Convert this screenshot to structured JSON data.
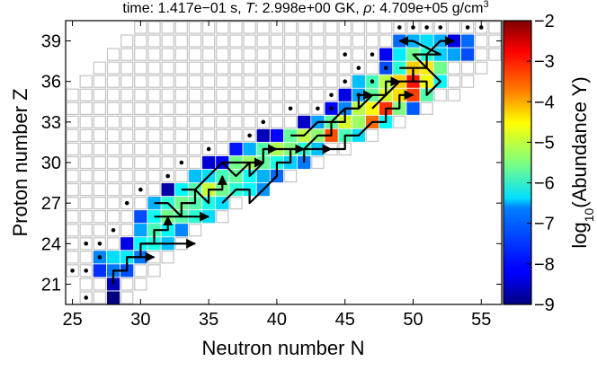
{
  "chart_data": {
    "type": "heatmap",
    "title": "time: 1.417e−01 s, T: 2.998e+00 GK, ρ: 4.709e+05 g/cm³",
    "title_parts": {
      "time_label": "time:",
      "time_value": "1.417e−01 s,",
      "temp_symbol": "T",
      "temp_value": ": 2.998e+00 GK,",
      "rho_symbol": "ρ",
      "rho_value": ": 4.709e+05 g/cm",
      "rho_unit_sup": "3"
    },
    "xlabel": "Neutron number N",
    "ylabel": "Proton number Z",
    "xlim": [
      24.5,
      56.5
    ],
    "ylim": [
      19.5,
      40.5
    ],
    "xticks": [
      25,
      30,
      35,
      40,
      45,
      50,
      55
    ],
    "yticks": [
      21,
      24,
      27,
      30,
      33,
      36,
      39
    ],
    "colorbar": {
      "label_prefix": "log",
      "label_sub": "10",
      "label_suffix": "(Abundance Y)",
      "range": [
        -9,
        -2
      ],
      "ticks": [
        "−9",
        "−8",
        "−7",
        "−6",
        "−5",
        "−4",
        "−3",
        "−2"
      ],
      "colormap": "jet"
    },
    "grid_rows": [
      {
        "z": 20,
        "n_min": 26,
        "n_max": 29
      },
      {
        "z": 21,
        "n_min": 26,
        "n_max": 30
      },
      {
        "z": 22,
        "n_min": 25,
        "n_max": 31
      },
      {
        "z": 23,
        "n_min": 25,
        "n_max": 32
      },
      {
        "z": 24,
        "n_min": 25,
        "n_max": 33
      },
      {
        "z": 25,
        "n_min": 25,
        "n_max": 34
      },
      {
        "z": 26,
        "n_min": 25,
        "n_max": 36
      },
      {
        "z": 27,
        "n_min": 25,
        "n_max": 37
      },
      {
        "z": 28,
        "n_min": 25,
        "n_max": 39
      },
      {
        "z": 29,
        "n_min": 25,
        "n_max": 41
      },
      {
        "z": 30,
        "n_min": 25,
        "n_max": 43
      },
      {
        "z": 31,
        "n_min": 25,
        "n_max": 45
      },
      {
        "z": 32,
        "n_min": 25,
        "n_max": 47
      },
      {
        "z": 33,
        "n_min": 25,
        "n_max": 49
      },
      {
        "z": 34,
        "n_min": 25,
        "n_max": 51
      },
      {
        "z": 35,
        "n_min": 25,
        "n_max": 53
      },
      {
        "z": 36,
        "n_min": 26,
        "n_max": 54
      },
      {
        "z": 37,
        "n_min": 27,
        "n_max": 55
      },
      {
        "z": 38,
        "n_min": 28,
        "n_max": 56
      },
      {
        "z": 39,
        "n_min": 29,
        "n_max": 56
      },
      {
        "z": 40,
        "n_min": 30,
        "n_max": 56
      }
    ],
    "abundant_cells": [
      {
        "z": 20,
        "n": 28,
        "log_y": -9.0
      },
      {
        "z": 21,
        "n": 28,
        "log_y": -8.6
      },
      {
        "z": 22,
        "n": 27,
        "log_y": -7.8
      },
      {
        "z": 22,
        "n": 28,
        "log_y": -7.3
      },
      {
        "z": 22,
        "n": 29,
        "log_y": -7.6
      },
      {
        "z": 23,
        "n": 27,
        "log_y": -7.2
      },
      {
        "z": 23,
        "n": 28,
        "log_y": -6.6
      },
      {
        "z": 23,
        "n": 29,
        "log_y": -6.5
      },
      {
        "z": 23,
        "n": 30,
        "log_y": -7.3
      },
      {
        "z": 24,
        "n": 29,
        "log_y": -8.3
      },
      {
        "z": 24,
        "n": 30,
        "log_y": -6.4
      },
      {
        "z": 24,
        "n": 31,
        "log_y": -6.2
      },
      {
        "z": 24,
        "n": 32,
        "log_y": -6.8
      },
      {
        "z": 25,
        "n": 30,
        "log_y": -7.0
      },
      {
        "z": 25,
        "n": 31,
        "log_y": -5.9
      },
      {
        "z": 25,
        "n": 32,
        "log_y": -6.4
      },
      {
        "z": 25,
        "n": 33,
        "log_y": -7.2
      },
      {
        "z": 26,
        "n": 30,
        "log_y": -7.6
      },
      {
        "z": 26,
        "n": 31,
        "log_y": -6.3
      },
      {
        "z": 26,
        "n": 32,
        "log_y": -5.6
      },
      {
        "z": 26,
        "n": 33,
        "log_y": -5.8
      },
      {
        "z": 26,
        "n": 34,
        "log_y": -6.1
      },
      {
        "z": 26,
        "n": 35,
        "log_y": -6.6
      },
      {
        "z": 27,
        "n": 31,
        "log_y": -6.9
      },
      {
        "z": 27,
        "n": 32,
        "log_y": -6.1
      },
      {
        "z": 27,
        "n": 33,
        "log_y": -5.6
      },
      {
        "z": 27,
        "n": 34,
        "log_y": -5.8
      },
      {
        "z": 27,
        "n": 35,
        "log_y": -6.2
      },
      {
        "z": 27,
        "n": 36,
        "log_y": -6.6
      },
      {
        "z": 28,
        "n": 32,
        "log_y": -8.7
      },
      {
        "z": 28,
        "n": 33,
        "log_y": -6.4
      },
      {
        "z": 28,
        "n": 34,
        "log_y": -5.8
      },
      {
        "z": 28,
        "n": 35,
        "log_y": -5.0
      },
      {
        "z": 28,
        "n": 36,
        "log_y": -5.6
      },
      {
        "z": 28,
        "n": 37,
        "log_y": -6.1
      },
      {
        "z": 28,
        "n": 38,
        "log_y": -6.4
      },
      {
        "z": 28,
        "n": 39,
        "log_y": -7.1
      },
      {
        "z": 29,
        "n": 34,
        "log_y": -6.8
      },
      {
        "z": 29,
        "n": 35,
        "log_y": -6.6
      },
      {
        "z": 29,
        "n": 36,
        "log_y": -5.9
      },
      {
        "z": 29,
        "n": 37,
        "log_y": -5.7
      },
      {
        "z": 29,
        "n": 38,
        "log_y": -6.3
      },
      {
        "z": 29,
        "n": 39,
        "log_y": -6.9
      },
      {
        "z": 29,
        "n": 40,
        "log_y": -7.4
      },
      {
        "z": 30,
        "n": 35,
        "log_y": -8.4
      },
      {
        "z": 30,
        "n": 36,
        "log_y": -8.2
      },
      {
        "z": 30,
        "n": 37,
        "log_y": -5.6
      },
      {
        "z": 30,
        "n": 38,
        "log_y": -5.3
      },
      {
        "z": 30,
        "n": 39,
        "log_y": -5.7
      },
      {
        "z": 30,
        "n": 40,
        "log_y": -6.2
      },
      {
        "z": 30,
        "n": 41,
        "log_y": -6.7
      },
      {
        "z": 30,
        "n": 42,
        "log_y": -7.3
      },
      {
        "z": 31,
        "n": 37,
        "log_y": -8.0
      },
      {
        "z": 31,
        "n": 38,
        "log_y": -6.9
      },
      {
        "z": 31,
        "n": 39,
        "log_y": -5.8
      },
      {
        "z": 31,
        "n": 40,
        "log_y": -5.2
      },
      {
        "z": 31,
        "n": 41,
        "log_y": -5.5
      },
      {
        "z": 31,
        "n": 42,
        "log_y": -6.1
      },
      {
        "z": 31,
        "n": 43,
        "log_y": -6.8
      },
      {
        "z": 32,
        "n": 39,
        "log_y": -8.6
      },
      {
        "z": 32,
        "n": 40,
        "log_y": -8.1
      },
      {
        "z": 32,
        "n": 41,
        "log_y": -5.7
      },
      {
        "z": 32,
        "n": 42,
        "log_y": -5.1
      },
      {
        "z": 32,
        "n": 43,
        "log_y": -5.4
      },
      {
        "z": 32,
        "n": 44,
        "log_y": -3.4
      },
      {
        "z": 32,
        "n": 45,
        "log_y": -5.9
      },
      {
        "z": 32,
        "n": 46,
        "log_y": -6.6
      },
      {
        "z": 33,
        "n": 42,
        "log_y": -8.5
      },
      {
        "z": 33,
        "n": 43,
        "log_y": -7.0
      },
      {
        "z": 33,
        "n": 44,
        "log_y": -5.7
      },
      {
        "z": 33,
        "n": 45,
        "log_y": -4.9
      },
      {
        "z": 33,
        "n": 46,
        "log_y": -5.3
      },
      {
        "z": 33,
        "n": 47,
        "log_y": -3.6
      },
      {
        "z": 33,
        "n": 48,
        "log_y": -6.4
      },
      {
        "z": 34,
        "n": 44,
        "log_y": -8.1
      },
      {
        "z": 34,
        "n": 45,
        "log_y": -7.2
      },
      {
        "z": 34,
        "n": 46,
        "log_y": -5.1
      },
      {
        "z": 34,
        "n": 47,
        "log_y": -4.6
      },
      {
        "z": 34,
        "n": 48,
        "log_y": -3.2
      },
      {
        "z": 34,
        "n": 49,
        "log_y": -5.5
      },
      {
        "z": 34,
        "n": 50,
        "log_y": -7.5
      },
      {
        "z": 35,
        "n": 45,
        "log_y": -8.3
      },
      {
        "z": 35,
        "n": 46,
        "log_y": -7.0
      },
      {
        "z": 35,
        "n": 47,
        "log_y": -5.7
      },
      {
        "z": 35,
        "n": 48,
        "log_y": -4.9
      },
      {
        "z": 35,
        "n": 49,
        "log_y": -4.4
      },
      {
        "z": 35,
        "n": 50,
        "log_y": -3.3
      },
      {
        "z": 35,
        "n": 51,
        "log_y": -5.8
      },
      {
        "z": 36,
        "n": 46,
        "log_y": -6.8
      },
      {
        "z": 36,
        "n": 47,
        "log_y": -5.9
      },
      {
        "z": 36,
        "n": 48,
        "log_y": -5.1
      },
      {
        "z": 36,
        "n": 49,
        "log_y": -4.3
      },
      {
        "z": 36,
        "n": 50,
        "log_y": -3.0
      },
      {
        "z": 36,
        "n": 51,
        "log_y": -4.7
      },
      {
        "z": 36,
        "n": 52,
        "log_y": -6.4
      },
      {
        "z": 37,
        "n": 48,
        "log_y": -7.6
      },
      {
        "z": 37,
        "n": 49,
        "log_y": -6.1
      },
      {
        "z": 37,
        "n": 50,
        "log_y": -4.3
      },
      {
        "z": 37,
        "n": 51,
        "log_y": -4.5
      },
      {
        "z": 37,
        "n": 52,
        "log_y": -5.6
      },
      {
        "z": 38,
        "n": 48,
        "log_y": -8.2
      },
      {
        "z": 38,
        "n": 49,
        "log_y": -6.5
      },
      {
        "z": 38,
        "n": 50,
        "log_y": -5.6
      },
      {
        "z": 38,
        "n": 51,
        "log_y": -6.1
      },
      {
        "z": 38,
        "n": 52,
        "log_y": -6.7
      },
      {
        "z": 38,
        "n": 53,
        "log_y": -7.0
      },
      {
        "z": 38,
        "n": 54,
        "log_y": -7.6
      },
      {
        "z": 39,
        "n": 49,
        "log_y": -7.4
      },
      {
        "z": 39,
        "n": 50,
        "log_y": -6.9
      },
      {
        "z": 39,
        "n": 51,
        "log_y": -6.6
      },
      {
        "z": 39,
        "n": 52,
        "log_y": -6.9
      },
      {
        "z": 39,
        "n": 53,
        "log_y": -8.3
      },
      {
        "z": 39,
        "n": 54,
        "log_y": -7.4
      }
    ],
    "marker_dots": [
      [
        25,
        22
      ],
      [
        26,
        22
      ],
      [
        26,
        24
      ],
      [
        27,
        23
      ],
      [
        27,
        24
      ],
      [
        26,
        20
      ],
      [
        28,
        25
      ],
      [
        29,
        27
      ],
      [
        30,
        28
      ],
      [
        32,
        29
      ],
      [
        33,
        30
      ],
      [
        35,
        31
      ],
      [
        38,
        32
      ],
      [
        39,
        33
      ],
      [
        41,
        34
      ],
      [
        43,
        34
      ],
      [
        44,
        34
      ],
      [
        44,
        35
      ],
      [
        45,
        36
      ],
      [
        47,
        36
      ],
      [
        46,
        37
      ],
      [
        47,
        38
      ],
      [
        48,
        37
      ],
      [
        49,
        40
      ],
      [
        50,
        40
      ],
      [
        51,
        40
      ],
      [
        52,
        40
      ],
      [
        54,
        40
      ],
      [
        55,
        40
      ],
      [
        45,
        38
      ],
      [
        46,
        35
      ]
    ],
    "flow_paths": [
      [
        [
          28,
          21
        ],
        [
          28,
          22
        ],
        [
          29,
          22
        ],
        [
          29,
          23
        ],
        [
          30,
          23
        ],
        [
          30,
          24
        ],
        [
          31,
          24
        ],
        [
          31,
          25
        ],
        [
          32,
          25
        ],
        [
          32,
          26
        ]
      ],
      [
        [
          31,
          27
        ],
        [
          32,
          27
        ],
        [
          33,
          26
        ],
        [
          33,
          27
        ],
        [
          34,
          27
        ],
        [
          34,
          28
        ],
        [
          35,
          27
        ],
        [
          35,
          28
        ],
        [
          36,
          28
        ],
        [
          36,
          29
        ]
      ],
      [
        [
          31,
          26
        ],
        [
          32,
          26
        ],
        [
          33,
          26
        ],
        [
          34,
          26
        ],
        [
          35,
          26
        ]
      ],
      [
        [
          33,
          28
        ],
        [
          34,
          28
        ],
        [
          35,
          29
        ],
        [
          36,
          30
        ],
        [
          37,
          29
        ],
        [
          38,
          30
        ],
        [
          38,
          29
        ],
        [
          39,
          30
        ],
        [
          39,
          31
        ],
        [
          40,
          31
        ]
      ],
      [
        [
          36,
          27
        ],
        [
          37,
          28
        ],
        [
          38,
          28
        ],
        [
          38,
          27
        ],
        [
          39,
          28
        ],
        [
          40,
          29
        ],
        [
          40,
          30
        ],
        [
          41,
          30
        ],
        [
          41,
          31
        ],
        [
          42,
          31
        ]
      ],
      [
        [
          42,
          30
        ],
        [
          42,
          31
        ],
        [
          43,
          32
        ],
        [
          44,
          32
        ],
        [
          44,
          33
        ],
        [
          45,
          33
        ],
        [
          45,
          34
        ],
        [
          46,
          34
        ],
        [
          46,
          35
        ],
        [
          47,
          35
        ]
      ],
      [
        [
          41,
          32
        ],
        [
          42,
          32
        ],
        [
          43,
          33
        ],
        [
          44,
          33
        ],
        [
          45,
          34
        ],
        [
          46,
          34
        ],
        [
          47,
          35
        ],
        [
          48,
          35
        ],
        [
          48,
          36
        ],
        [
          49,
          36
        ]
      ],
      [
        [
          44,
          31
        ],
        [
          45,
          31
        ],
        [
          45,
          32
        ],
        [
          46,
          32
        ],
        [
          47,
          33
        ],
        [
          48,
          33
        ],
        [
          48,
          34
        ],
        [
          49,
          34
        ],
        [
          49,
          35
        ],
        [
          50,
          35
        ]
      ],
      [
        [
          47,
          34
        ],
        [
          48,
          35
        ],
        [
          49,
          36
        ],
        [
          50,
          36
        ],
        [
          50,
          37
        ],
        [
          51,
          37
        ],
        [
          51,
          38
        ],
        [
          52,
          38
        ],
        [
          50,
          39
        ],
        [
          49,
          39
        ]
      ],
      [
        [
          49,
          37
        ],
        [
          50,
          37
        ],
        [
          50,
          36
        ],
        [
          51,
          36
        ],
        [
          51,
          35
        ],
        [
          52,
          36
        ],
        [
          50,
          38
        ],
        [
          51,
          38
        ],
        [
          52,
          39
        ],
        [
          53,
          39
        ]
      ],
      [
        [
          30,
          24
        ],
        [
          31,
          24
        ],
        [
          32,
          24
        ],
        [
          33,
          24
        ],
        [
          34,
          24
        ]
      ],
      [
        [
          29,
          23
        ],
        [
          30,
          23
        ],
        [
          31,
          23
        ]
      ],
      [
        [
          36,
          30
        ],
        [
          37,
          30
        ],
        [
          38,
          30
        ],
        [
          39,
          30
        ]
      ],
      [
        [
          39,
          31
        ],
        [
          40,
          31
        ],
        [
          41,
          31
        ],
        [
          42,
          31
        ],
        [
          43,
          31
        ],
        [
          44,
          31
        ]
      ]
    ]
  }
}
